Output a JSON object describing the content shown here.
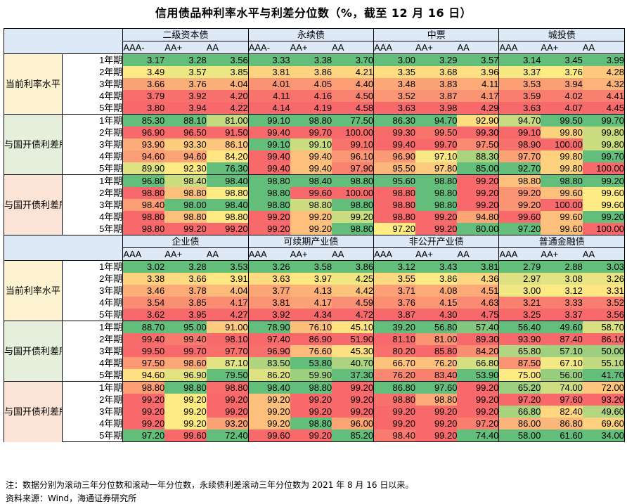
{
  "title": "信用债品种利率水平与利差分位数（%，截至 12 月 16 日）",
  "terms": [
    "1年期",
    "2年期",
    "3年期",
    "4年期",
    "5年期"
  ],
  "group_labels": {
    "current": "当前利率水平",
    "pct3y": "与国开债利差所处分位数（3年）",
    "pct1y": "与国开债利差所处分位数（1年）"
  },
  "sections": [
    {
      "categories": [
        {
          "name": "二级资本债",
          "ratings": [
            "AAA-",
            "AA+",
            "AA"
          ]
        },
        {
          "name": "永续债",
          "ratings": [
            "AAA-",
            "AA+",
            "AA"
          ]
        },
        {
          "name": "中票",
          "ratings": [
            "AAA",
            "AA+",
            "AA"
          ]
        },
        {
          "name": "城投债",
          "ratings": [
            "AAA",
            "AA+",
            "AA"
          ]
        }
      ],
      "current": [
        [
          "3.17",
          "3.28",
          "3.56",
          "3.33",
          "3.38",
          "3.70",
          "3.00",
          "3.29",
          "3.57",
          "3.14",
          "3.45",
          "3.99"
        ],
        [
          "3.49",
          "3.57",
          "3.85",
          "3.81",
          "3.86",
          "4.21",
          "3.35",
          "3.68",
          "3.96",
          "3.37",
          "3.76",
          "4.28"
        ],
        [
          "3.66",
          "3.76",
          "4.04",
          "4.01",
          "4.05",
          "4.40",
          "3.48",
          "3.83",
          "4.11",
          "3.53",
          "3.94",
          "4.32"
        ],
        [
          "3.79",
          "3.92",
          "4.20",
          "4.11",
          "4.16",
          "4.50",
          "3.52",
          "3.87",
          "4.17",
          "3.59",
          "4.02",
          "4.41"
        ],
        [
          "3.80",
          "3.94",
          "4.22",
          "4.14",
          "4.19",
          "4.58",
          "3.63",
          "3.98",
          "4.29",
          "3.63",
          "4.07",
          "4.45"
        ]
      ],
      "pct3y": [
        [
          "85.30",
          "88.10",
          "81.00",
          "99.10",
          "98.80",
          "77.50",
          "86.30",
          "94.70",
          "92.90",
          "94.70",
          "99.50",
          "99.70"
        ],
        [
          "96.90",
          "96.50",
          "91.50",
          "99.40",
          "99.70",
          "100.00",
          "99.30",
          "99.50",
          "99.30",
          "99.10",
          "99.80",
          "99.80"
        ],
        [
          "93.90",
          "93.30",
          "86.10",
          "99.10",
          "99.10",
          "99.10",
          "99.40",
          "99.70",
          "97.50",
          "98.90",
          "100.00",
          "99.80"
        ],
        [
          "94.60",
          "94.60",
          "84.20",
          "99.40",
          "99.40",
          "96.10",
          "96.90",
          "97.10",
          "88.30",
          "97.70",
          "99.80",
          "99.70"
        ],
        [
          "89.90",
          "92.30",
          "76.30",
          "99.40",
          "99.40",
          "97.90",
          "95.50",
          "97.80",
          "85.00",
          "92.70",
          "99.80",
          "100.00"
        ]
      ],
      "pct1y": [
        [
          "96.80",
          "98.40",
          "98.40",
          "98.80",
          "98.40",
          "98.80",
          "95.60",
          "98.80",
          "99.20",
          "98.80",
          "98.80",
          "99.20"
        ],
        [
          "98.80",
          "98.80",
          "98.80",
          "98.80",
          "99.60",
          "100.00",
          "98.80",
          "98.80",
          "99.20",
          "99.20",
          "99.60",
          "99.60"
        ],
        [
          "98.40",
          "98.00",
          "98.40",
          "98.80",
          "98.80",
          "98.80",
          "98.80",
          "98.80",
          "99.20",
          "99.20",
          "100.00",
          "99.60"
        ],
        [
          "98.80",
          "98.80",
          "98.80",
          "99.20",
          "99.20",
          "99.20",
          "98.80",
          "99.20",
          "94.80",
          "99.60",
          "99.60",
          "99.20"
        ],
        [
          "98.80",
          "99.20",
          "99.20",
          "99.20",
          "99.20",
          "98.80",
          "97.20",
          "99.20",
          "80.00",
          "97.20",
          "99.60",
          "100.00"
        ]
      ]
    },
    {
      "categories": [
        {
          "name": "企业债",
          "ratings": [
            "AAA",
            "AA+",
            "AA"
          ]
        },
        {
          "name": "可续期产业债",
          "ratings": [
            "AAA",
            "AA+",
            "AA"
          ]
        },
        {
          "name": "非公开产业债",
          "ratings": [
            "AAA",
            "AA+",
            "AA"
          ]
        },
        {
          "name": "普通金融债",
          "ratings": [
            "AAA",
            "AA+",
            "AA"
          ]
        }
      ],
      "current": [
        [
          "3.02",
          "3.28",
          "3.53",
          "3.26",
          "3.58",
          "3.86",
          "3.12",
          "3.43",
          "3.81",
          "2.79",
          "2.88",
          "3.03"
        ],
        [
          "3.38",
          "3.66",
          "3.91",
          "3.63",
          "3.97",
          "4.25",
          "3.55",
          "3.86",
          "4.36",
          "2.97",
          "3.08",
          "3.26"
        ],
        [
          "3.46",
          "3.78",
          "4.04",
          "3.77",
          "4.13",
          "4.42",
          "3.71",
          "4.08",
          "4.51",
          "3.00",
          "3.12",
          "3.31"
        ],
        [
          "3.54",
          "3.85",
          "4.17",
          "3.81",
          "4.17",
          "4.59",
          "3.76",
          "4.15",
          "4.63",
          "3.21",
          "3.33",
          "3.52"
        ],
        [
          "3.62",
          "3.95",
          "4.27",
          "3.92",
          "4.34",
          "4.72",
          "3.87",
          "4.30",
          "4.75",
          "3.25",
          "3.37",
          "3.56"
        ]
      ],
      "pct3y": [
        [
          "88.70",
          "95.00",
          "91.00",
          "78.90",
          "76.10",
          "45.10",
          "39.20",
          "56.80",
          "57.40",
          "56.40",
          "49.60",
          "58.70"
        ],
        [
          "99.40",
          "99.40",
          "98.10",
          "97.40",
          "86.90",
          "51.90",
          "81.10",
          "81.00",
          "89.30",
          "93.90",
          "87.40",
          "86.10"
        ],
        [
          "99.50",
          "99.70",
          "97.70",
          "96.90",
          "76.60",
          "45.30",
          "80.20",
          "85.80",
          "84.20",
          "65.80",
          "57.10",
          "50.00"
        ],
        [
          "97.50",
          "98.60",
          "87.10",
          "83.50",
          "53.80",
          "40.70",
          "66.70",
          "76.20",
          "66.80",
          "87.50",
          "67.10",
          "55.10"
        ],
        [
          "94.60",
          "96.90",
          "79.50",
          "86.20",
          "59.90",
          "37.30",
          "76.20",
          "83.40",
          "53.90",
          "75.00",
          "56.00",
          "41.70"
        ]
      ],
      "pct1y": [
        [
          "98.80",
          "98.80",
          "98.80",
          "98.40",
          "98.80",
          "99.20",
          "86.80",
          "97.60",
          "99.20",
          "65.20",
          "74.00",
          "72.00"
        ],
        [
          "99.20",
          "99.20",
          "99.20",
          "99.20",
          "99.20",
          "99.20",
          "98.80",
          "98.80",
          "99.20",
          "97.20",
          "97.60",
          "93.20"
        ],
        [
          "99.20",
          "99.20",
          "99.20",
          "99.20",
          "99.20",
          "99.20",
          "99.20",
          "99.20",
          "99.20",
          "66.80",
          "82.40",
          "49.60"
        ],
        [
          "99.20",
          "99.20",
          "93.20",
          "99.20",
          "98.80",
          "96.00",
          "99.20",
          "99.20",
          "97.20",
          "86.00",
          "86.80",
          "69.60"
        ],
        [
          "97.20",
          "99.60",
          "72.40",
          "99.60",
          "99.20",
          "85.20",
          "98.40",
          "99.20",
          "74.40",
          "58.00",
          "61.60",
          "34.00"
        ]
      ]
    }
  ],
  "note": "注：数据分别为滚动三年分位数和滚动一年分位数，永续债利差滚动三年分位数为 2021 年 8 月 16 日以来。",
  "source": "资料来源：Wind，海通证券研究所"
}
